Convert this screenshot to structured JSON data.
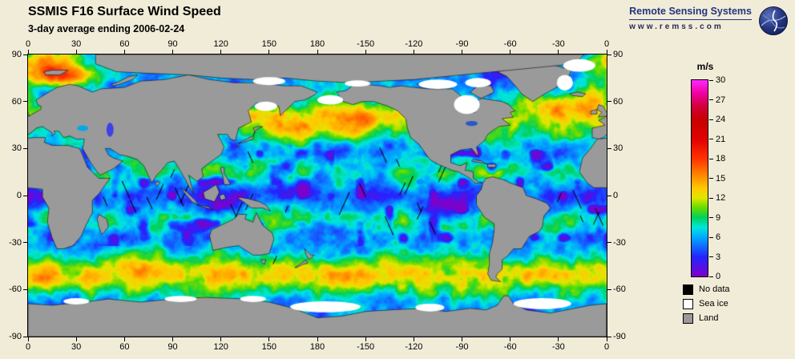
{
  "header": {
    "title": "SSMIS F16 Surface Wind Speed",
    "subtitle": "3-day average ending 2006-02-24"
  },
  "branding": {
    "name": "Remote Sensing Systems",
    "url": "www.remss.com"
  },
  "map": {
    "lon_ticks": [
      0,
      30,
      60,
      90,
      120,
      150,
      180,
      -150,
      -120,
      -90,
      -60,
      -30,
      0
    ],
    "lat_ticks": [
      90,
      60,
      30,
      0,
      -30,
      -60,
      -90
    ]
  },
  "colorbar": {
    "unit": "m/s",
    "min": 0,
    "max": 30,
    "ticks": [
      30,
      27,
      24,
      21,
      18,
      15,
      12,
      9,
      6,
      3,
      0
    ],
    "stops": [
      {
        "v": 0,
        "c": "#8000C8"
      },
      {
        "v": 3,
        "c": "#2424FF"
      },
      {
        "v": 6,
        "c": "#00AAFF"
      },
      {
        "v": 7.5,
        "c": "#00E6DC"
      },
      {
        "v": 9,
        "c": "#00D05A"
      },
      {
        "v": 10.5,
        "c": "#64DC00"
      },
      {
        "v": 12,
        "c": "#E1E600"
      },
      {
        "v": 13.5,
        "c": "#FFC800"
      },
      {
        "v": 15,
        "c": "#FF9600"
      },
      {
        "v": 16.5,
        "c": "#FF6400"
      },
      {
        "v": 18,
        "c": "#FF3200"
      },
      {
        "v": 21,
        "c": "#E10000"
      },
      {
        "v": 24,
        "c": "#C80000"
      },
      {
        "v": 26,
        "c": "#D2003C"
      },
      {
        "v": 28,
        "c": "#F000A0"
      },
      {
        "v": 30,
        "c": "#FF28FF"
      }
    ]
  },
  "legend": [
    {
      "label": "No data",
      "color": "#000000"
    },
    {
      "label": "Sea ice",
      "color": "#FFFFFF"
    },
    {
      "label": "Land",
      "color": "#9A9A9A"
    }
  ],
  "colors": {
    "background": "#F1ECD8",
    "land": "#9A9A9A",
    "brand": "#23357E"
  },
  "chart_data": {
    "type": "heatmap",
    "title": "SSMIS F16 Surface Wind Speed",
    "subtitle": "3-day average ending 2006-02-24",
    "units": "m/s",
    "value_range": [
      0,
      30
    ],
    "colorbar_ticks": [
      0,
      3,
      6,
      9,
      12,
      15,
      18,
      21,
      24,
      27,
      30
    ],
    "lon_ticks": [
      0,
      30,
      60,
      90,
      120,
      150,
      180,
      -150,
      -120,
      -90,
      -60,
      -30,
      0
    ],
    "lat_ticks": [
      90,
      60,
      30,
      0,
      -30,
      -60,
      -90
    ],
    "projection": "equirectangular, longitude 0 to 360 left to right",
    "masks": [
      "No data (black)",
      "Sea ice (white)",
      "Land (gray)"
    ]
  }
}
